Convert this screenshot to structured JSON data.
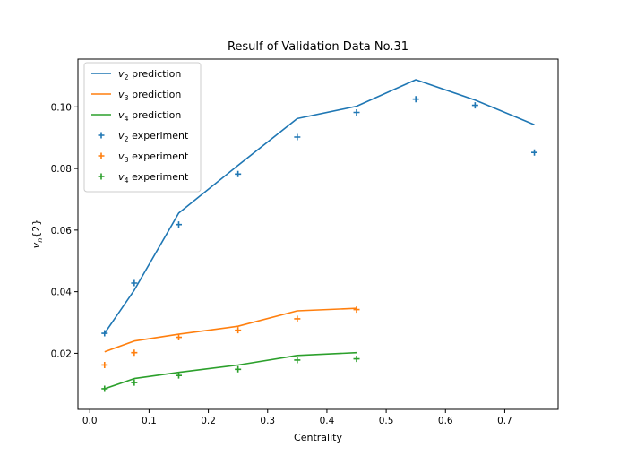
{
  "chart_data": {
    "type": "line",
    "title": "Resulf of Validation Data No.31",
    "xlabel": "Centrality",
    "ylabel": "v_n{2}",
    "xlim": [
      -0.02,
      0.79
    ],
    "ylim": [
      0.0018,
      0.1155
    ],
    "xticks": [
      0.0,
      0.1,
      0.2,
      0.3,
      0.4,
      0.5,
      0.6,
      0.7
    ],
    "xtick_labels": [
      "0.0",
      "0.1",
      "0.2",
      "0.3",
      "0.4",
      "0.5",
      "0.6",
      "0.7"
    ],
    "yticks": [
      0.02,
      0.04,
      0.06,
      0.08,
      0.1
    ],
    "ytick_labels": [
      "0.02",
      "0.04",
      "0.06",
      "0.08",
      "0.10"
    ],
    "legend_position": "upper-left",
    "series": [
      {
        "name": "v2 prediction",
        "label_base": "v",
        "label_sub": "2",
        "label_suffix": " prediction",
        "kind": "line",
        "color": "#1f77b4",
        "x": [
          0.025,
          0.075,
          0.15,
          0.25,
          0.35,
          0.45,
          0.55,
          0.65,
          0.75
        ],
        "y": [
          0.0265,
          0.0405,
          0.0655,
          0.081,
          0.0962,
          0.1002,
          0.1088,
          0.1022,
          0.0942
        ]
      },
      {
        "name": "v3 prediction",
        "label_base": "v",
        "label_sub": "3",
        "label_suffix": " prediction",
        "kind": "line",
        "color": "#ff7f0e",
        "x": [
          0.025,
          0.075,
          0.15,
          0.25,
          0.35,
          0.45
        ],
        "y": [
          0.0205,
          0.024,
          0.0262,
          0.0288,
          0.0338,
          0.0346
        ]
      },
      {
        "name": "v4 prediction",
        "label_base": "v",
        "label_sub": "4",
        "label_suffix": " prediction",
        "kind": "line",
        "color": "#2ca02c",
        "x": [
          0.025,
          0.075,
          0.15,
          0.25,
          0.35,
          0.45
        ],
        "y": [
          0.0085,
          0.0118,
          0.0138,
          0.0162,
          0.0193,
          0.0202
        ]
      },
      {
        "name": "v2 experiment",
        "label_base": "v",
        "label_sub": "2",
        "label_suffix": " experiment",
        "kind": "marker",
        "color": "#1f77b4",
        "x": [
          0.025,
          0.075,
          0.15,
          0.25,
          0.35,
          0.45,
          0.55,
          0.65,
          0.75
        ],
        "y": [
          0.0265,
          0.0428,
          0.0618,
          0.0782,
          0.0902,
          0.0982,
          0.1025,
          0.1005,
          0.0852
        ]
      },
      {
        "name": "v3 experiment",
        "label_base": "v",
        "label_sub": "3",
        "label_suffix": " experiment",
        "kind": "marker",
        "color": "#ff7f0e",
        "x": [
          0.025,
          0.075,
          0.15,
          0.25,
          0.35,
          0.45
        ],
        "y": [
          0.0162,
          0.0202,
          0.0252,
          0.0275,
          0.0312,
          0.0342
        ]
      },
      {
        "name": "v4 experiment",
        "label_base": "v",
        "label_sub": "4",
        "label_suffix": " experiment",
        "kind": "marker",
        "color": "#2ca02c",
        "x": [
          0.025,
          0.075,
          0.15,
          0.25,
          0.35,
          0.45
        ],
        "y": [
          0.0085,
          0.0105,
          0.0128,
          0.0148,
          0.0178,
          0.0182
        ]
      }
    ]
  }
}
